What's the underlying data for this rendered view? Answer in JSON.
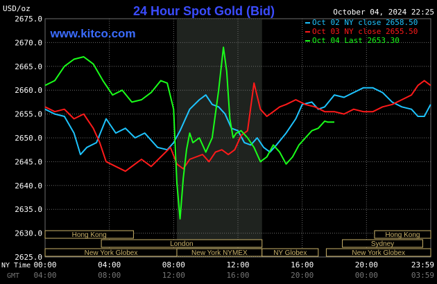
{
  "header": {
    "title": "24 Hour Spot Gold (Bid)",
    "unit": "USD/oz",
    "date": "October 04, 2024 22:25",
    "site": "www.kitco.com"
  },
  "colors": {
    "background": "#000000",
    "grid": "#6e6e6e",
    "title": "#3b4cff",
    "site": "#3b6cff",
    "night": "#1f231f",
    "oct02": "#1ec4ff",
    "oct03": "#ff1a1a",
    "oct04": "#1aff1a",
    "sessions": "#cbb36a",
    "axis_text": "#ffffff",
    "gmt_text": "#777777"
  },
  "time_axis": {
    "ny_label": "NY Time",
    "gmt_label": "GMT",
    "ny_ticks": [
      "00:00",
      "04:00",
      "08:00",
      "12:00",
      "16:00",
      "20:00",
      "23:59"
    ],
    "gmt_ticks": [
      "04:00",
      "08:00",
      "12:00",
      "16:00",
      "20:00",
      "00:00",
      "03:59"
    ]
  },
  "sessions": {
    "row1": [
      "Hong Kong",
      "Hong Kong"
    ],
    "row2": [
      "London",
      "Sydney"
    ],
    "row3": [
      "New York Globex",
      "New York NYMEX",
      "NY Globex",
      "New York Globex"
    ]
  },
  "chart_data": {
    "type": "line",
    "title": "24 Hour Spot Gold (Bid)",
    "ylabel": "USD/oz",
    "ylim": [
      2625,
      2675
    ],
    "yticks": [
      "2675.0",
      "2670.0",
      "2665.0",
      "2660.0",
      "2655.0",
      "2650.0",
      "2645.0",
      "2640.0",
      "2635.0",
      "2630.0",
      "2625.0"
    ],
    "xlim_hours": [
      0,
      24
    ],
    "grid": true,
    "legend_position": "top-right",
    "series": [
      {
        "name": "Oct 02 NY close 2658.50",
        "color": "#1ec4ff",
        "x": [
          0,
          0.6,
          1.2,
          1.8,
          2.2,
          2.6,
          3.2,
          3.8,
          4.4,
          5.0,
          5.6,
          6.2,
          7.0,
          7.6,
          8.0,
          8.4,
          9.0,
          9.6,
          10.0,
          10.4,
          10.8,
          11.2,
          11.6,
          12.0,
          12.4,
          12.8,
          13.2,
          13.6,
          14.0,
          14.4,
          15.0,
          15.6,
          16.0,
          16.6,
          17.0,
          17.4,
          18.0,
          18.6,
          19.2,
          19.8,
          20.4,
          21.0,
          21.6,
          22.2,
          22.8,
          23.2,
          23.6,
          23.99
        ],
        "y": [
          2656.0,
          2655.0,
          2654.5,
          2651.0,
          2646.5,
          2648.0,
          2649.0,
          2654.0,
          2651.0,
          2652.0,
          2650.0,
          2651.0,
          2648.0,
          2647.5,
          2649.0,
          2651.5,
          2656.0,
          2658.0,
          2659.0,
          2657.0,
          2656.5,
          2655.0,
          2652.0,
          2651.5,
          2649.0,
          2648.5,
          2650.0,
          2648.0,
          2647.0,
          2648.5,
          2651.0,
          2654.0,
          2657.0,
          2657.5,
          2656.0,
          2656.5,
          2659.0,
          2658.5,
          2659.5,
          2660.5,
          2660.5,
          2659.5,
          2657.5,
          2656.5,
          2656.0,
          2654.5,
          2654.5,
          2657.0
        ]
      },
      {
        "name": "Oct 03 NY close 2655.50",
        "color": "#ff1a1a",
        "x": [
          0,
          0.6,
          1.2,
          1.8,
          2.4,
          3.0,
          3.4,
          3.8,
          4.4,
          5.0,
          5.6,
          6.0,
          6.6,
          7.2,
          7.8,
          8.2,
          8.6,
          9.0,
          9.4,
          9.8,
          10.2,
          10.6,
          11.0,
          11.4,
          11.8,
          12.2,
          12.6,
          13.0,
          13.4,
          13.8,
          14.2,
          14.6,
          15.0,
          15.6,
          16.2,
          16.8,
          17.4,
          18.0,
          18.6,
          19.2,
          19.8,
          20.4,
          21.0,
          21.6,
          22.2,
          22.8,
          23.2,
          23.6,
          23.99
        ],
        "y": [
          2656.5,
          2655.5,
          2656.0,
          2654.0,
          2655.0,
          2652.0,
          2649.0,
          2645.0,
          2644.0,
          2643.0,
          2644.5,
          2645.5,
          2644.0,
          2646.0,
          2648.0,
          2644.5,
          2643.5,
          2645.5,
          2646.0,
          2646.5,
          2645.0,
          2647.0,
          2647.5,
          2646.5,
          2647.5,
          2650.5,
          2651.5,
          2661.5,
          2656.0,
          2654.5,
          2655.5,
          2656.5,
          2657.0,
          2658.0,
          2657.0,
          2656.5,
          2655.5,
          2655.5,
          2655.0,
          2656.0,
          2655.5,
          2655.5,
          2656.5,
          2657.0,
          2658.0,
          2659.0,
          2661.0,
          2662.0,
          2661.0
        ]
      },
      {
        "name": "Oct 04 Last 2653.30",
        "color": "#1aff1a",
        "x": [
          0,
          0.6,
          1.2,
          1.8,
          2.4,
          3.0,
          3.6,
          4.2,
          4.8,
          5.4,
          6.0,
          6.6,
          7.2,
          7.6,
          8.0,
          8.2,
          8.4,
          8.6,
          8.8,
          9.0,
          9.2,
          9.6,
          10.0,
          10.4,
          10.8,
          11.1,
          11.3,
          11.5,
          11.7,
          11.9,
          12.2,
          12.6,
          13.0,
          13.4,
          13.8,
          14.2,
          14.6,
          15.0,
          15.4,
          15.8,
          16.2,
          16.6,
          17.0,
          17.4,
          17.6,
          18.0
        ],
        "y": [
          2661.0,
          2662.0,
          2665.0,
          2666.5,
          2667.0,
          2665.5,
          2662.0,
          2659.0,
          2660.0,
          2657.5,
          2658.0,
          2659.5,
          2662.0,
          2661.5,
          2656.0,
          2640.5,
          2633.0,
          2641.5,
          2647.5,
          2651.0,
          2649.0,
          2650.0,
          2647.0,
          2650.0,
          2660.0,
          2669.0,
          2664.0,
          2654.0,
          2650.0,
          2651.0,
          2651.5,
          2650.0,
          2648.0,
          2645.0,
          2646.0,
          2648.5,
          2647.0,
          2644.5,
          2646.0,
          2648.5,
          2650.0,
          2651.5,
          2652.0,
          2653.5,
          2653.3,
          2653.3
        ]
      }
    ]
  }
}
